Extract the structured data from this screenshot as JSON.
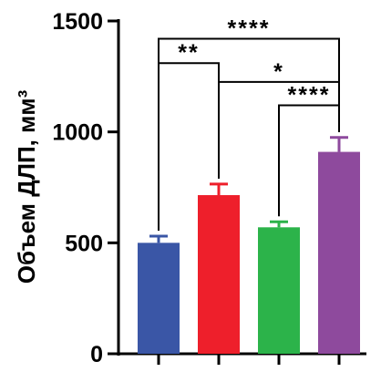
{
  "chart_data": {
    "type": "bar",
    "title": "",
    "xlabel": "",
    "ylabel": "Объем ДЛП, мм³",
    "ylim": [
      0,
      1500
    ],
    "yticks": [
      0,
      500,
      1000,
      1500
    ],
    "grid": false,
    "legend": "none",
    "categories": [
      "",
      "",
      "",
      ""
    ],
    "values": [
      500,
      715,
      570,
      910
    ],
    "errors": [
      30,
      50,
      25,
      65
    ],
    "colors": [
      "#3a56a6",
      "#ee1f2b",
      "#2cb34a",
      "#8e4a9d"
    ],
    "significance": [
      {
        "from": 0,
        "to": 3,
        "label": "****",
        "level": 1420
      },
      {
        "from": 0,
        "to": 1,
        "label": "**",
        "level": 1310
      },
      {
        "from": 1,
        "to": 3,
        "label": "*",
        "level": 1225
      },
      {
        "from": 2,
        "to": 3,
        "label": "****",
        "level": 1120
      }
    ]
  }
}
